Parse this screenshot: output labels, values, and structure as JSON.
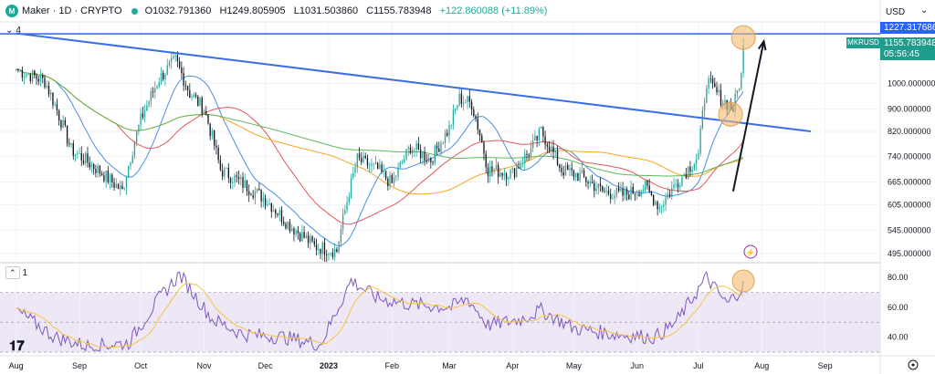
{
  "header": {
    "symbol": "Maker · 1D · CRYPTO",
    "open": "O1032.791360",
    "high": "H1249.805905",
    "low": "L1031.503860",
    "close": "C1155.783948",
    "change": "+122.860088 (+11.89%)"
  },
  "currency": "USD",
  "currency_chevron": "⌄",
  "drawing_count": "4",
  "rsi_count": "1",
  "price_tags": {
    "line_level": "1227.317686",
    "symbol": "MKRUSD",
    "last_price": "1155.783948",
    "countdown": "05:56:45"
  },
  "colors": {
    "accent": "#2962ff",
    "up": "#26a69a",
    "down": "#131722",
    "ma_blue": "#4a90e2",
    "ma_red": "#e25858",
    "ma_orange": "#f5a623",
    "ma_green": "#5cb85c",
    "rsi_line": "#7e57c2",
    "rsi_ma": "#f5c542",
    "rsi_band": "#ede7f6",
    "highlight": "#f5b971"
  },
  "chart_data": [
    {
      "type": "candlestick",
      "title": "Maker · 1D · CRYPTO",
      "x_tick_labels": [
        "Aug",
        "Sep",
        "Oct",
        "Nov",
        "Dec",
        "2023",
        "Feb",
        "Mar",
        "Apr",
        "May",
        "Jun",
        "Jul",
        "Aug",
        "Sep"
      ],
      "y_tick_labels": [
        "1000.000000",
        "900.000000",
        "820.000000",
        "740.000000",
        "665.000000",
        "605.000000",
        "545.000000",
        "495.000000"
      ],
      "y_scale": "log",
      "ylim": [
        480,
        1280
      ],
      "anchors": [
        [
          "2022-08-01",
          1060
        ],
        [
          "2022-08-15",
          1010
        ],
        [
          "2022-08-28",
          760
        ],
        [
          "2022-09-10",
          700
        ],
        [
          "2022-09-22",
          640
        ],
        [
          "2022-10-01",
          860
        ],
        [
          "2022-10-10",
          1020
        ],
        [
          "2022-10-18",
          1100
        ],
        [
          "2022-10-25",
          960
        ],
        [
          "2022-11-01",
          900
        ],
        [
          "2022-11-09",
          700
        ],
        [
          "2022-11-20",
          660
        ],
        [
          "2022-12-01",
          620
        ],
        [
          "2022-12-12",
          560
        ],
        [
          "2022-12-25",
          510
        ],
        [
          "2023-01-05",
          500
        ],
        [
          "2023-01-15",
          730
        ],
        [
          "2023-01-25",
          700
        ],
        [
          "2023-02-01",
          660
        ],
        [
          "2023-02-10",
          770
        ],
        [
          "2023-02-20",
          730
        ],
        [
          "2023-03-01",
          830
        ],
        [
          "2023-03-06",
          940
        ],
        [
          "2023-03-12",
          920
        ],
        [
          "2023-03-20",
          700
        ],
        [
          "2023-04-01",
          690
        ],
        [
          "2023-04-10",
          760
        ],
        [
          "2023-04-15",
          820
        ],
        [
          "2023-04-25",
          700
        ],
        [
          "2023-05-05",
          680
        ],
        [
          "2023-05-15",
          640
        ],
        [
          "2023-05-25",
          630
        ],
        [
          "2023-06-05",
          650
        ],
        [
          "2023-06-12",
          600
        ],
        [
          "2023-06-20",
          660
        ],
        [
          "2023-07-01",
          740
        ],
        [
          "2023-07-05",
          1010
        ],
        [
          "2023-07-12",
          940
        ],
        [
          "2023-07-18",
          900
        ],
        [
          "2023-07-22",
          1033
        ],
        [
          "2023-07-23",
          1156
        ]
      ],
      "annotations": {
        "horizontal_line": 1227.317686,
        "trendline": [
          [
            "2022-08-01",
            1230
          ],
          [
            "2023-08-25",
            820
          ]
        ],
        "arrow": [
          [
            "2023-07-18",
            640
          ],
          [
            "2023-08-02",
            1190
          ]
        ]
      }
    },
    {
      "type": "line",
      "title": "RSI",
      "y_tick_labels": [
        "80.00",
        "60.00",
        "40.00"
      ],
      "ylim": [
        30,
        85
      ],
      "band": [
        30,
        70
      ],
      "anchors": [
        [
          "2022-08-01",
          58
        ],
        [
          "2022-08-20",
          40
        ],
        [
          "2022-09-05",
          34
        ],
        [
          "2022-09-25",
          36
        ],
        [
          "2022-10-10",
          66
        ],
        [
          "2022-10-20",
          82
        ],
        [
          "2022-11-05",
          52
        ],
        [
          "2022-11-20",
          42
        ],
        [
          "2022-12-10",
          40
        ],
        [
          "2022-12-28",
          35
        ],
        [
          "2023-01-12",
          78
        ],
        [
          "2023-01-25",
          66
        ],
        [
          "2023-02-10",
          62
        ],
        [
          "2023-03-02",
          60
        ],
        [
          "2023-03-10",
          66
        ],
        [
          "2023-03-20",
          48
        ],
        [
          "2023-04-05",
          52
        ],
        [
          "2023-04-15",
          58
        ],
        [
          "2023-05-01",
          46
        ],
        [
          "2023-05-20",
          42
        ],
        [
          "2023-06-10",
          40
        ],
        [
          "2023-06-20",
          50
        ],
        [
          "2023-07-05",
          80
        ],
        [
          "2023-07-15",
          62
        ],
        [
          "2023-07-23",
          74
        ]
      ]
    }
  ]
}
